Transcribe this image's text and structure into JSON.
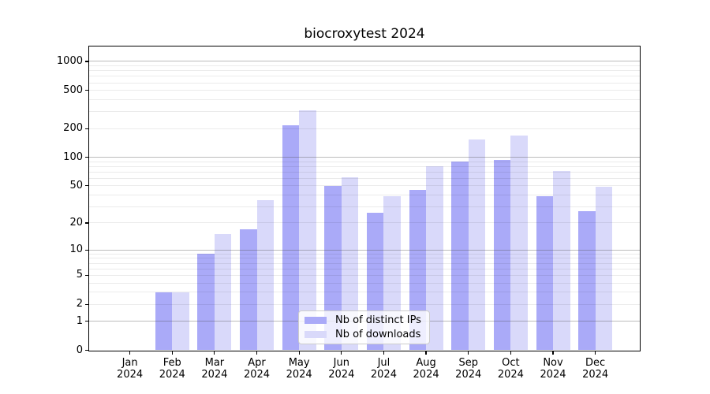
{
  "chart_data": {
    "type": "bar",
    "title": "biocroxytest 2024",
    "categories": [
      "Jan",
      "Feb",
      "Mar",
      "Apr",
      "May",
      "Jun",
      "Jul",
      "Aug",
      "Sep",
      "Oct",
      "Nov",
      "Dec"
    ],
    "category_year": "2024",
    "series": [
      {
        "name": "Nb of distinct IPs",
        "color": "#aaaaf8",
        "values": [
          0,
          3,
          9,
          17,
          215,
          50,
          26,
          45,
          90,
          93,
          39,
          27
        ]
      },
      {
        "name": "Nb of downloads",
        "color": "#d9d9fa",
        "values": [
          0,
          3,
          15,
          35,
          310,
          62,
          39,
          80,
          155,
          170,
          72,
          49
        ]
      }
    ],
    "xlabel": "",
    "ylabel": "",
    "yscale": "log1p",
    "ylim": [
      0,
      1430
    ],
    "yticks": [
      0,
      1,
      2,
      5,
      10,
      20,
      50,
      100,
      200,
      500,
      1000
    ],
    "grid": {
      "enabled": true,
      "major_values": [
        1,
        10,
        100,
        1000
      ],
      "major_color": "#b8b8b8",
      "minor_color": "#e8e8e8",
      "drawn_above_bars": true
    },
    "legend": {
      "position": "bottom-center",
      "entries": [
        "Nb of distinct IPs",
        "Nb of downloads"
      ]
    },
    "colors": {
      "background": "#ffffff",
      "axis": "#000000",
      "text": "#000000"
    }
  }
}
